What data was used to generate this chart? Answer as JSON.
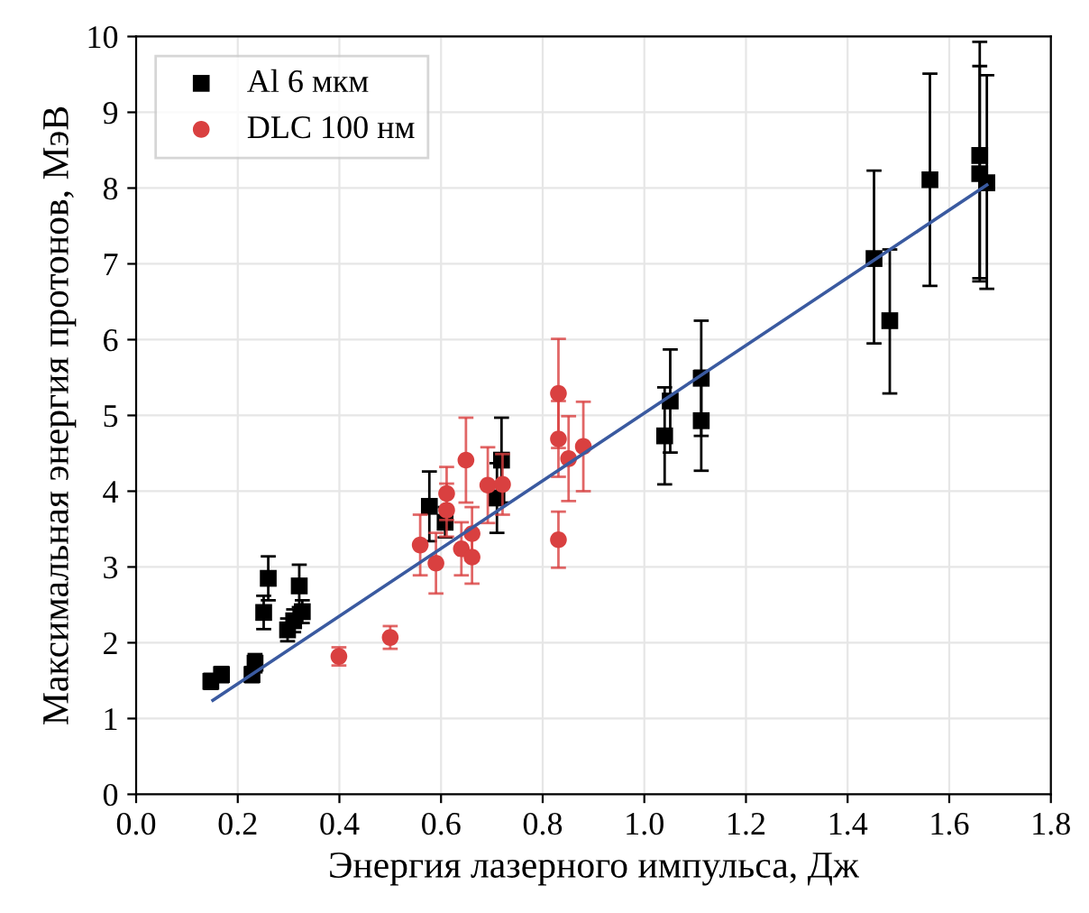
{
  "chart_data": {
    "type": "scatter",
    "xlabel": "Энергия лазерного импульса, Дж",
    "ylabel": "Максимальная энергия протонов, МэВ",
    "xlim": [
      0.0,
      1.8
    ],
    "xticks": [
      {
        "value": 0.0,
        "label": "0.0"
      },
      0.2,
      0.4,
      0.6,
      0.8,
      {
        "value": 1.0,
        "label": "1.0"
      },
      1.2,
      1.4,
      1.6,
      1.8
    ],
    "ylim": [
      0,
      10
    ],
    "yticks": [
      0,
      1,
      2,
      3,
      4,
      5,
      6,
      7,
      8,
      9,
      10
    ],
    "grid": true,
    "legend": "top left",
    "series": [
      {
        "name": "Al 6 мкм",
        "marker": "square",
        "color": "#000000",
        "x": [
          0.147,
          0.168,
          0.228,
          0.234,
          0.251,
          0.26,
          0.321,
          0.298,
          0.31,
          0.327,
          0.577,
          0.608,
          0.71,
          0.719,
          1.04,
          1.051,
          1.112,
          1.112,
          1.452,
          1.483,
          1.562,
          1.66,
          1.66,
          1.674
        ],
        "values": [
          1.49,
          1.58,
          1.58,
          1.73,
          2.4,
          2.85,
          2.75,
          2.17,
          2.29,
          2.41,
          3.8,
          3.59,
          3.91,
          4.41,
          4.73,
          5.19,
          5.49,
          4.93,
          7.07,
          6.25,
          8.11,
          8.43,
          8.19,
          8.07
        ],
        "errors": [
          0.1,
          0.1,
          0.1,
          0.12,
          0.22,
          0.29,
          0.28,
          0.15,
          0.15,
          0.15,
          0.46,
          0.2,
          0.46,
          0.56,
          0.64,
          0.68,
          0.76,
          0.66,
          [
            5.95,
            8.23
          ],
          [
            5.29,
            7.19
          ],
          [
            6.71,
            9.51
          ],
          [
            6.81,
            9.93
          ],
          [
            6.77,
            9.61
          ],
          [
            6.67,
            9.49
          ]
        ]
      },
      {
        "name": "DLC 100 нм",
        "marker": "circle",
        "color": "#d94040",
        "x": [
          0.399,
          0.5,
          0.559,
          0.59,
          0.611,
          0.611,
          0.64,
          0.649,
          0.661,
          0.661,
          0.692,
          0.721,
          0.831,
          0.831,
          0.831,
          0.851,
          0.88
        ],
        "values": [
          1.82,
          2.07,
          3.29,
          3.05,
          3.97,
          3.75,
          3.24,
          4.41,
          3.44,
          3.13,
          4.08,
          4.09,
          5.29,
          4.69,
          3.36,
          4.43,
          4.59
        ],
        "errors": [
          0.12,
          0.15,
          0.4,
          0.4,
          0.35,
          0.35,
          0.35,
          0.56,
          0.35,
          0.35,
          0.5,
          0.4,
          0.72,
          0.5,
          0.37,
          0.56,
          0.59
        ]
      },
      {
        "type": "line",
        "color": "#3a5aa0",
        "x": [
          0.151,
          1.674
        ],
        "values": [
          1.24,
          8.04
        ]
      }
    ]
  }
}
